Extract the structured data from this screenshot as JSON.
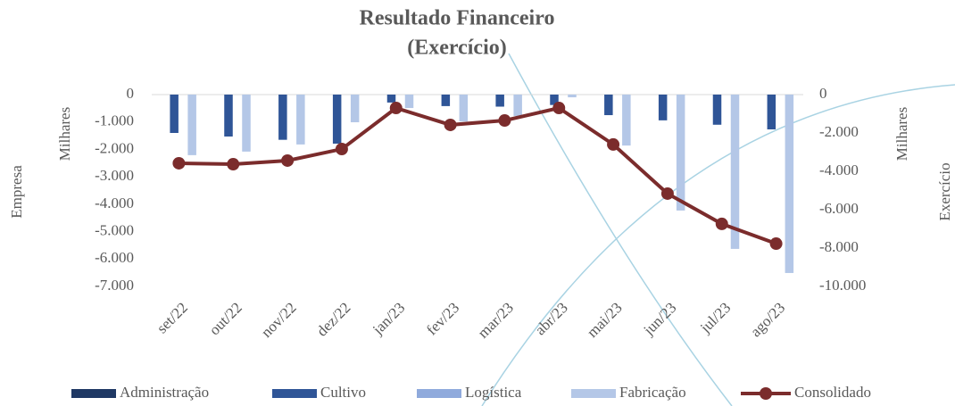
{
  "chart_data": {
    "type": "bar",
    "title": "Resultado Financeiro",
    "subtitle": "(Exercício)",
    "y_label": "Milhares",
    "y_axis_title": "Empresa",
    "y2_label": "Milhares",
    "y2_axis_title": "Exercício",
    "categories": [
      "set/22",
      "out/22",
      "nov/22",
      "dez/22",
      "jan/23",
      "fev/23",
      "mar/23",
      "abr/23",
      "mai/23",
      "jun/23",
      "jul/23",
      "ago/23"
    ],
    "series": [
      {
        "name": "Administração",
        "type": "bar",
        "color": "#1f3864",
        "values": [
          0,
          0,
          0,
          0,
          0,
          0,
          0,
          0,
          0,
          0,
          0,
          0
        ]
      },
      {
        "name": "Cultivo",
        "type": "bar",
        "color": "#2f5597",
        "values": [
          -1400,
          -1530,
          -1650,
          -1790,
          -290,
          -420,
          -440,
          -380,
          -750,
          -940,
          -1100,
          -1270
        ]
      },
      {
        "name": "Logística",
        "type": "bar",
        "color": "#8faadc",
        "values": [
          0,
          0,
          0,
          0,
          0,
          0,
          0,
          0,
          0,
          0,
          0,
          0
        ]
      },
      {
        "name": "Fabricação",
        "type": "bar",
        "color": "#b4c7e7",
        "values": [
          -2210,
          -2080,
          -1820,
          -1010,
          -490,
          -980,
          -780,
          -100,
          -1860,
          -4230,
          -5630,
          -6510
        ]
      },
      {
        "name": "Consolidado",
        "type": "line",
        "axis": "y2",
        "color": "#7b2c2c",
        "values": [
          -3580,
          -3630,
          -3440,
          -2840,
          -700,
          -1580,
          -1350,
          -700,
          -2600,
          -5160,
          -6740,
          -7770
        ]
      }
    ],
    "ylim": [
      -7000,
      0
    ],
    "yticks": [
      0,
      {
        "value": -1000,
        "label": "-1.000"
      },
      {
        "value": -2000,
        "label": "-2.000"
      },
      {
        "value": -3000,
        "label": "-3.000"
      },
      {
        "value": -4000,
        "label": "-4.000"
      },
      {
        "value": -5000,
        "label": "-5.000"
      },
      {
        "value": -6000,
        "label": "-6.000"
      },
      {
        "value": -7000,
        "label": "-7.000"
      }
    ],
    "y2lim": [
      -10000,
      0
    ],
    "y2ticks": [
      0,
      {
        "value": -2000,
        "label": "-2.000"
      },
      {
        "value": -4000,
        "label": "-4.000"
      },
      {
        "value": -6000,
        "label": "-6.000"
      },
      {
        "value": -8000,
        "label": "-8.000"
      },
      {
        "value": -10000,
        "label": "-10.000"
      }
    ],
    "legend": "bottom"
  }
}
